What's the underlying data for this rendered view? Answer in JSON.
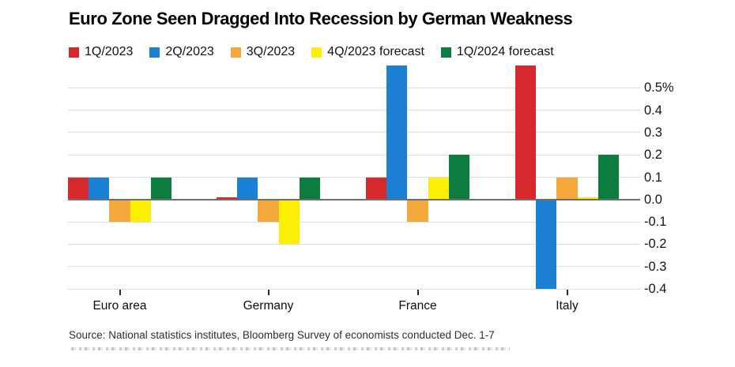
{
  "title": "Euro Zone Seen Dragged Into Recession by German Weakness",
  "source": "Source: National statistics institutes, Bloomberg Survey of economists conducted Dec. 1-7",
  "colors": {
    "red": "#d7282d",
    "blue": "#1b7fd4",
    "orange": "#f5a93b",
    "yellow": "#fcf000",
    "green": "#0d7c3f",
    "grid": "#dcdcdc",
    "zero_line": "#6f6f6f",
    "tick": "#2b2b2b",
    "text": "#111111"
  },
  "chart_data": {
    "type": "bar",
    "title": "Euro Zone Seen Dragged Into Recession by German Weakness",
    "categories": [
      "Euro area",
      "Germany",
      "France",
      "Italy"
    ],
    "series": [
      {
        "name": "1Q/2023",
        "color": "#d7282d",
        "values": [
          0.1,
          0.0,
          0.1,
          0.6
        ]
      },
      {
        "name": "2Q/2023",
        "color": "#1b7fd4",
        "values": [
          0.1,
          0.1,
          0.6,
          -0.4
        ]
      },
      {
        "name": "3Q/2023",
        "color": "#f5a93b",
        "values": [
          -0.1,
          -0.1,
          -0.1,
          0.1
        ]
      },
      {
        "name": "4Q/2023 forecast",
        "color": "#fcf000",
        "values": [
          -0.1,
          -0.2,
          0.1,
          0.0
        ]
      },
      {
        "name": "1Q/2024 forecast",
        "color": "#0d7c3f",
        "values": [
          0.1,
          0.1,
          0.2,
          0.2
        ]
      }
    ],
    "ylim": [
      -0.4,
      0.6
    ],
    "yticks": [
      {
        "label": "0.5%",
        "value": 0.5
      },
      {
        "label": "0.4",
        "value": 0.4
      },
      {
        "label": "0.3",
        "value": 0.3
      },
      {
        "label": "0.2",
        "value": 0.2
      },
      {
        "label": "0.1",
        "value": 0.1
      },
      {
        "label": "0.0",
        "value": 0.0
      },
      {
        "label": "-0.1",
        "value": -0.1
      },
      {
        "label": "-0.2",
        "value": -0.2
      },
      {
        "label": "-0.3",
        "value": -0.3
      },
      {
        "label": "-0.4",
        "value": -0.4
      }
    ],
    "grid": true,
    "legend_position": "top",
    "y_axis_side": "right"
  }
}
